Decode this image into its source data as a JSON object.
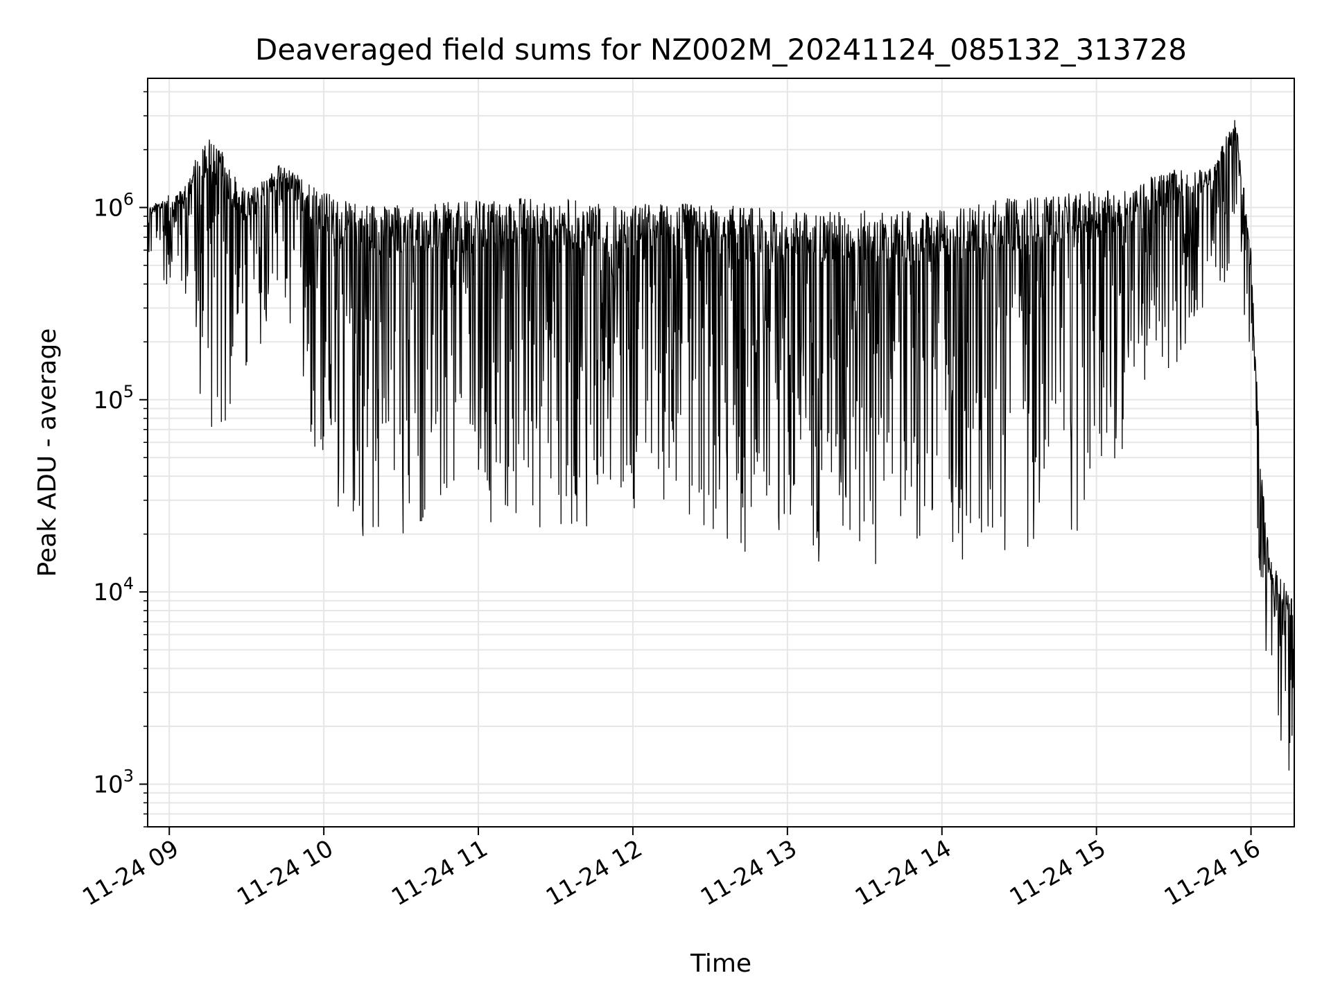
{
  "chart_data": {
    "type": "line",
    "title": "Deaveraged field sums for NZ002M_20241124_085132_313728",
    "xlabel": "Time",
    "ylabel": "Peak ADU - average",
    "yscale": "log",
    "grid": true,
    "x_tick_labels": [
      "11-24 09",
      "11-24 10",
      "11-24 11",
      "11-24 12",
      "11-24 13",
      "11-24 14",
      "11-24 15",
      "11-24 16"
    ],
    "x_ticks_hours": [
      9,
      10,
      11,
      12,
      13,
      14,
      15,
      16
    ],
    "xlim_hours": [
      8.86,
      16.28
    ],
    "y_tick_labels": [
      {
        "base": "10",
        "exp": "3",
        "value": 1000
      },
      {
        "base": "10",
        "exp": "4",
        "value": 10000
      },
      {
        "base": "10",
        "exp": "5",
        "value": 100000
      },
      {
        "base": "10",
        "exp": "6",
        "value": 1000000
      }
    ],
    "ylim": [
      600,
      4700000
    ],
    "line_color": "#000000",
    "series": [
      {
        "time_hours": [
          8.86,
          9.1,
          9.25,
          9.5,
          9.72,
          9.9,
          10.1,
          10.4,
          10.7,
          11.0,
          11.3,
          11.6,
          11.9,
          12.2,
          12.5,
          12.8,
          13.1,
          13.4,
          13.7,
          14.0,
          14.3,
          14.6,
          14.9,
          15.2,
          15.5,
          15.75,
          15.9,
          16.0,
          16.06,
          16.12,
          16.2,
          16.28
        ],
        "upper_envelope": [
          1000000,
          1300000,
          2600000,
          1200000,
          1700000,
          1400000,
          1100000,
          1050000,
          1050000,
          1100000,
          1150000,
          1100000,
          1050000,
          1050000,
          1050000,
          1000000,
          950000,
          970000,
          960000,
          970000,
          1100000,
          1150000,
          1200000,
          1300000,
          1600000,
          1600000,
          3100000,
          600000,
          50000,
          15000,
          12000,
          9000
        ],
        "lower_envelope": [
          500000,
          300000,
          50000,
          90000,
          300000,
          60000,
          20000,
          16000,
          18000,
          15000,
          20000,
          18000,
          22000,
          28000,
          16000,
          12000,
          14000,
          14000,
          13000,
          12000,
          14000,
          17000,
          20000,
          50000,
          120000,
          300000,
          500000,
          100000,
          10000,
          3000,
          1500,
          900
        ]
      }
    ]
  }
}
